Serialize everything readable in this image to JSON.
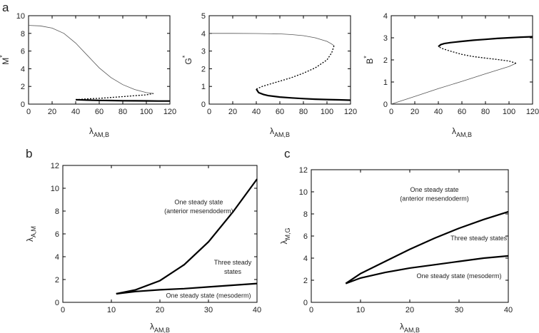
{
  "figure": {
    "panel_labels": [
      "a",
      "b",
      "c"
    ]
  },
  "chart_data": [
    {
      "id": "a1",
      "type": "line",
      "xlabel": "λ",
      "xlabel_sub": "AM,B",
      "ylabel": "M",
      "ylabel_sup": "*",
      "xlim": [
        0,
        120
      ],
      "ylim": [
        0,
        10
      ],
      "xticks": [
        0,
        20,
        40,
        60,
        80,
        100,
        120
      ],
      "yticks": [
        0,
        2,
        4,
        6,
        8,
        10
      ],
      "series": [
        {
          "name": "upper branch",
          "style": "thin",
          "x": [
            0,
            10,
            20,
            30,
            40,
            50,
            60,
            70,
            80,
            90,
            100,
            106
          ],
          "y": [
            8.9,
            8.85,
            8.6,
            8.0,
            6.9,
            5.5,
            4.1,
            3.0,
            2.2,
            1.65,
            1.3,
            1.2
          ]
        },
        {
          "name": "unstable branch",
          "style": "dotted",
          "x": [
            40,
            50,
            60,
            70,
            80,
            90,
            100,
            106
          ],
          "y": [
            0.5,
            0.6,
            0.65,
            0.75,
            0.85,
            0.95,
            1.05,
            1.2
          ]
        },
        {
          "name": "lower branch",
          "style": "thick",
          "x": [
            40,
            50,
            60,
            70,
            80,
            90,
            100,
            110,
            120
          ],
          "y": [
            0.5,
            0.45,
            0.42,
            0.4,
            0.38,
            0.37,
            0.36,
            0.35,
            0.35
          ]
        }
      ]
    },
    {
      "id": "a2",
      "type": "line",
      "xlabel": "λ",
      "xlabel_sub": "AM,B",
      "ylabel": "G",
      "ylabel_sup": "*",
      "xlim": [
        0,
        120
      ],
      "ylim": [
        0,
        5
      ],
      "xticks": [
        0,
        20,
        40,
        60,
        80,
        100,
        120
      ],
      "yticks": [
        0,
        1,
        2,
        3,
        4,
        5
      ],
      "series": [
        {
          "name": "upper branch",
          "style": "thin",
          "x": [
            0,
            20,
            40,
            60,
            70,
            80,
            90,
            100,
            104,
            106
          ],
          "y": [
            4.0,
            4.0,
            3.99,
            3.97,
            3.93,
            3.87,
            3.75,
            3.55,
            3.4,
            3.3
          ]
        },
        {
          "name": "unstable branch",
          "style": "dotted",
          "x": [
            106,
            104,
            100,
            90,
            80,
            70,
            60,
            50,
            45,
            40
          ],
          "y": [
            3.3,
            2.9,
            2.5,
            2.05,
            1.75,
            1.5,
            1.3,
            1.1,
            1.0,
            0.85
          ]
        },
        {
          "name": "lower branch",
          "style": "thick",
          "x": [
            40,
            42,
            46,
            50,
            60,
            70,
            80,
            90,
            100,
            110,
            120
          ],
          "y": [
            0.85,
            0.65,
            0.55,
            0.48,
            0.4,
            0.35,
            0.31,
            0.28,
            0.26,
            0.24,
            0.22
          ]
        }
      ]
    },
    {
      "id": "a3",
      "type": "line",
      "xlabel": "λ",
      "xlabel_sub": "AM,B",
      "ylabel": "B",
      "ylabel_sup": "*",
      "xlim": [
        0,
        120
      ],
      "ylim": [
        0,
        4
      ],
      "xticks": [
        0,
        20,
        40,
        60,
        80,
        100,
        120
      ],
      "yticks": [
        0,
        1,
        2,
        3,
        4
      ],
      "series": [
        {
          "name": "lower branch",
          "style": "thin",
          "x": [
            0,
            20,
            40,
            60,
            80,
            100,
            106
          ],
          "y": [
            0.0,
            0.35,
            0.7,
            1.03,
            1.37,
            1.7,
            1.85
          ]
        },
        {
          "name": "unstable branch",
          "style": "dotted",
          "x": [
            106,
            100,
            90,
            80,
            70,
            60,
            50,
            44,
            40
          ],
          "y": [
            1.85,
            1.95,
            2.02,
            2.08,
            2.15,
            2.25,
            2.4,
            2.5,
            2.6
          ]
        },
        {
          "name": "upper branch",
          "style": "thick",
          "x": [
            40,
            42,
            45,
            50,
            60,
            70,
            80,
            90,
            100,
            110,
            120
          ],
          "y": [
            2.6,
            2.69,
            2.74,
            2.78,
            2.84,
            2.89,
            2.93,
            2.97,
            3.0,
            3.03,
            3.05
          ]
        }
      ]
    },
    {
      "id": "b",
      "type": "line",
      "xlabel": "λ",
      "xlabel_sub": "AM,B",
      "ylabel": "λ",
      "ylabel_sub": "A,M",
      "xlim": [
        0,
        40
      ],
      "ylim": [
        0,
        12
      ],
      "xticks": [
        0,
        10,
        20,
        30,
        40
      ],
      "yticks": [
        0,
        2,
        4,
        6,
        8,
        10,
        12
      ],
      "series": [
        {
          "name": "upper boundary",
          "style": "thick",
          "x": [
            11,
            15,
            20,
            25,
            30,
            35,
            40
          ],
          "y": [
            0.75,
            1.1,
            1.9,
            3.3,
            5.3,
            7.9,
            10.8
          ]
        },
        {
          "name": "lower boundary",
          "style": "thick",
          "x": [
            11,
            15,
            20,
            25,
            30,
            35,
            40
          ],
          "y": [
            0.75,
            0.95,
            1.1,
            1.2,
            1.35,
            1.5,
            1.65
          ]
        }
      ],
      "annotations": [
        {
          "text": "One steady state",
          "x": 28,
          "y": 8.6
        },
        {
          "text": "(anterior mesendoderm)",
          "x": 28,
          "y": 7.8
        },
        {
          "text": "Three steady",
          "x": 35,
          "y": 3.3
        },
        {
          "text": "states",
          "x": 35,
          "y": 2.5
        },
        {
          "text": "One steady state (mesoderm)",
          "x": 30,
          "y": 0.4
        }
      ]
    },
    {
      "id": "c",
      "type": "line",
      "xlabel": "λ",
      "xlabel_sub": "AM,B",
      "ylabel": "λ",
      "ylabel_sub": "M,G",
      "xlim": [
        0,
        40
      ],
      "ylim": [
        0,
        12
      ],
      "xticks": [
        0,
        10,
        20,
        30,
        40
      ],
      "yticks": [
        0,
        2,
        4,
        6,
        8,
        10,
        12
      ],
      "series": [
        {
          "name": "upper boundary",
          "style": "thick",
          "x": [
            7,
            10,
            15,
            20,
            25,
            30,
            35,
            40
          ],
          "y": [
            1.7,
            2.6,
            3.7,
            4.8,
            5.8,
            6.7,
            7.5,
            8.2
          ]
        },
        {
          "name": "lower boundary",
          "style": "thick",
          "x": [
            7,
            10,
            15,
            20,
            25,
            30,
            35,
            40
          ],
          "y": [
            1.7,
            2.2,
            2.7,
            3.1,
            3.4,
            3.7,
            4.0,
            4.2
          ]
        }
      ],
      "annotations": [
        {
          "text": "One steady state",
          "x": 25,
          "y": 10
        },
        {
          "text": "(anterior mesendoderm)",
          "x": 25,
          "y": 9.2
        },
        {
          "text": "Three steady states",
          "x": 34,
          "y": 5.6
        },
        {
          "text": "One steady state (mesoderm)",
          "x": 30,
          "y": 2.2
        }
      ]
    }
  ]
}
